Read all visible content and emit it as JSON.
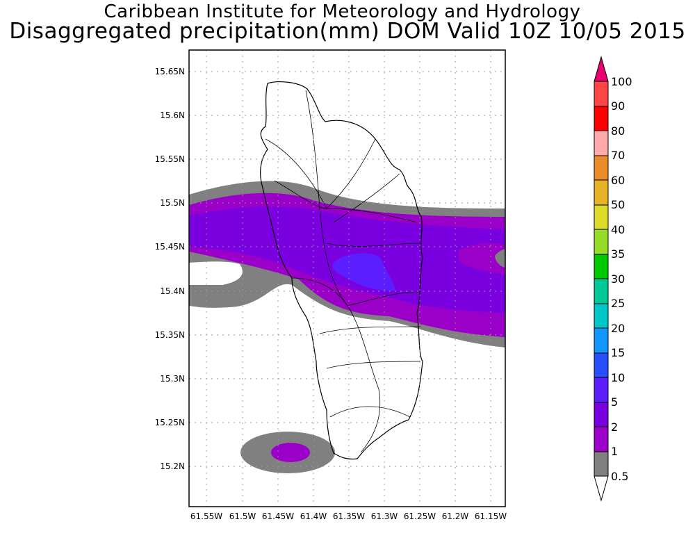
{
  "header": {
    "line1": "Caribbean Institute for Meteorology and Hydrology",
    "line2": "Disaggregated precipitation(mm) DOM Valid 10Z 10/05 2015"
  },
  "map": {
    "region": "Dominica",
    "lat_labels": [
      "15.65N",
      "15.6N",
      "15.55N",
      "15.5N",
      "15.45N",
      "15.4N",
      "15.35N",
      "15.3N",
      "15.25N",
      "15.2N"
    ],
    "lon_labels": [
      "61.55W",
      "61.5W",
      "61.45W",
      "61.4W",
      "61.35W",
      "61.3W",
      "61.25W",
      "61.2W",
      "61.15W"
    ],
    "grid": true
  },
  "colorbar": {
    "labels": [
      "0.5",
      "1",
      "2",
      "5",
      "10",
      "15",
      "20",
      "25",
      "30",
      "35",
      "40",
      "50",
      "60",
      "70",
      "80",
      "90",
      "100"
    ],
    "colors": [
      "#808080",
      "#9b00c8",
      "#7a00e0",
      "#5a1eff",
      "#2850ff",
      "#1496ff",
      "#00c8c8",
      "#00c896",
      "#00c800",
      "#96dc28",
      "#dcdc28",
      "#e6b428",
      "#eb8c28",
      "#ffaaaa",
      "#ff0000",
      "#ff4646",
      "#ff0064"
    ]
  },
  "chart_data": {
    "type": "heatmap",
    "title": "Disaggregated precipitation(mm) DOM Valid 10Z 10/05 2015",
    "units": "mm",
    "contour_levels": [
      0.5,
      1,
      2,
      5,
      10,
      15,
      20,
      25,
      30,
      35,
      40,
      50,
      60,
      70,
      80,
      90,
      100
    ],
    "features": [
      {
        "level_range": "0.5-1",
        "description": "band across 15.38N-15.52N"
      },
      {
        "level_range": "1-2",
        "description": "band across 15.40N-15.50N"
      },
      {
        "level_range": "2-5",
        "description": "core band near 15.43N-15.49N"
      },
      {
        "level_range": "5-10",
        "description": "small maximum near 61.32W 15.42N"
      },
      {
        "level_range": "0.5-2",
        "description": "isolated cell near 61.44W 15.21N"
      }
    ]
  }
}
